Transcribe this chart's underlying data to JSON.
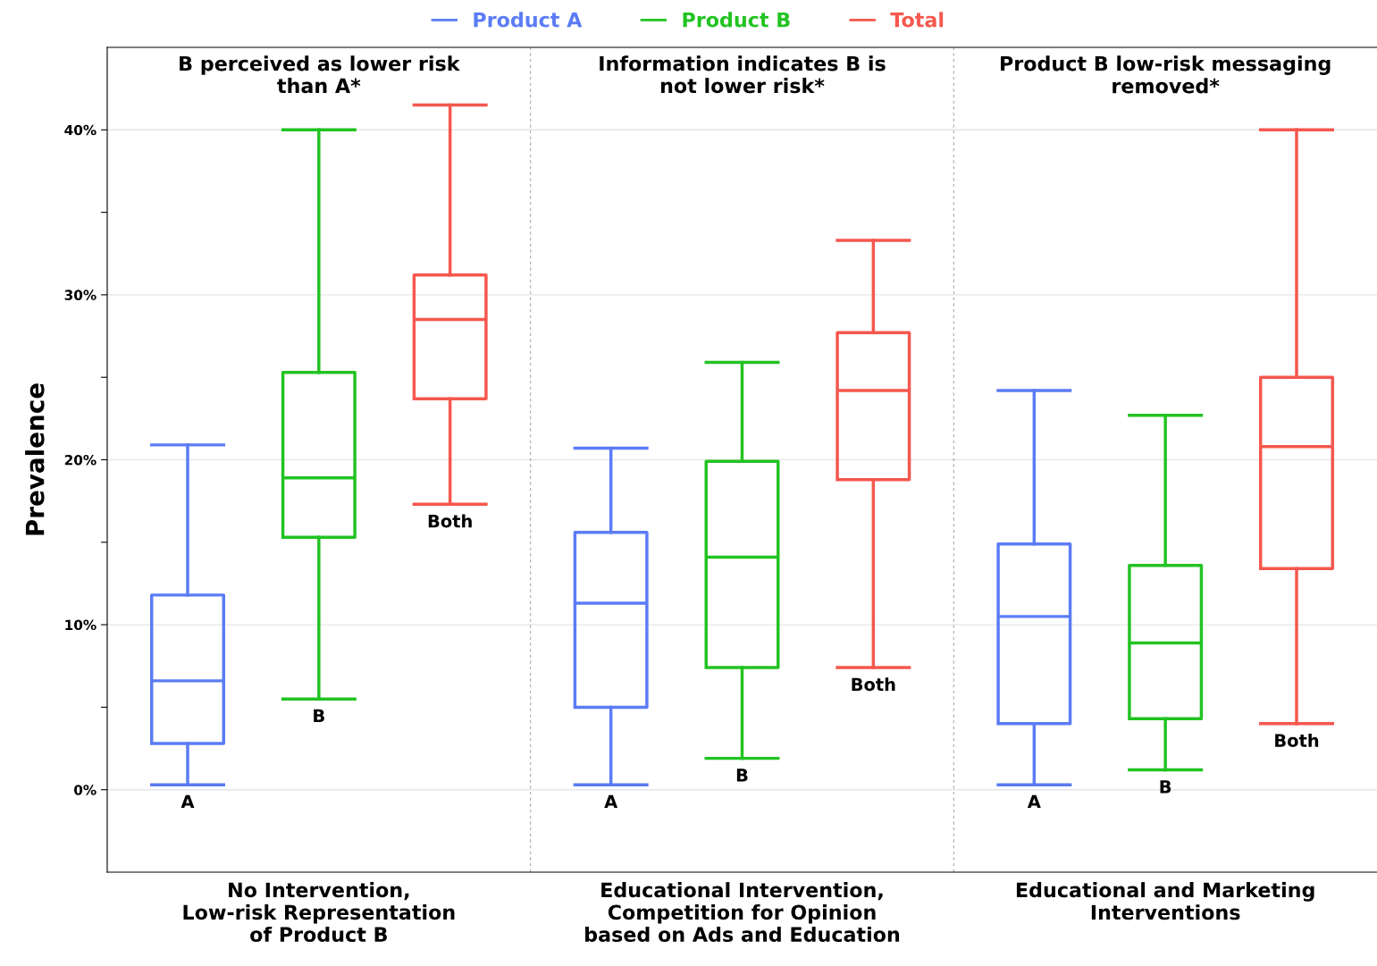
{
  "chart_data": {
    "type": "box",
    "ylabel": "Prevalence",
    "categories": [
      "No Intervention,\nLow-risk Representation\nof Product B",
      "Educational Intervention,\nCompetition for Opinion\nbased on Ads and Education",
      "Educational and Marketing\nInterventions"
    ],
    "annotations": [
      "B perceived as lower risk\nthan A*",
      "Information indicates B is\nnot lower risk*",
      "Product B low-risk messaging\nremoved*"
    ],
    "legend": "top",
    "grid": "y",
    "ylim": [
      -5,
      45
    ],
    "yticks": [
      {
        "value": 0,
        "label": "0%"
      },
      {
        "value": 5,
        "label": null
      },
      {
        "value": 10,
        "label": "10%"
      },
      {
        "value": 15,
        "label": null
      },
      {
        "value": 20,
        "label": "20%"
      },
      {
        "value": 25,
        "label": null
      },
      {
        "value": 30,
        "label": "30%"
      },
      {
        "value": 35,
        "label": null
      },
      {
        "value": 40,
        "label": "40%"
      }
    ],
    "series": [
      {
        "name": "Product A",
        "color": "#5b7cf5",
        "value_labels": [
          "A",
          "A",
          "A"
        ],
        "boxes": [
          {
            "low": 0.3,
            "q1": 2.8,
            "median": 6.6,
            "q3": 11.8,
            "high": 20.9
          },
          {
            "low": 0.3,
            "q1": 5.0,
            "median": 11.3,
            "q3": 15.6,
            "high": 20.7
          },
          {
            "low": 0.3,
            "q1": 4.0,
            "median": 10.5,
            "q3": 14.9,
            "high": 24.2
          }
        ]
      },
      {
        "name": "Product B",
        "color": "#22c322",
        "value_labels": [
          "B",
          "B",
          "B"
        ],
        "boxes": [
          {
            "low": 5.5,
            "q1": 15.3,
            "median": 18.9,
            "q3": 25.3,
            "high": 40.0
          },
          {
            "low": 1.9,
            "q1": 7.4,
            "median": 14.1,
            "q3": 19.9,
            "high": 25.9
          },
          {
            "low": 1.2,
            "q1": 4.3,
            "median": 8.9,
            "q3": 13.6,
            "high": 22.7
          }
        ]
      },
      {
        "name": "Total",
        "color": "#f5574e",
        "value_labels": [
          "Both",
          "Both",
          "Both"
        ],
        "boxes": [
          {
            "low": 17.3,
            "q1": 23.7,
            "median": 28.5,
            "q3": 31.2,
            "high": 41.5
          },
          {
            "low": 7.4,
            "q1": 18.8,
            "median": 24.2,
            "q3": 27.7,
            "high": 33.3
          },
          {
            "low": 4.0,
            "q1": 13.4,
            "median": 20.8,
            "q3": 25.0,
            "high": 40.0
          }
        ]
      }
    ]
  }
}
